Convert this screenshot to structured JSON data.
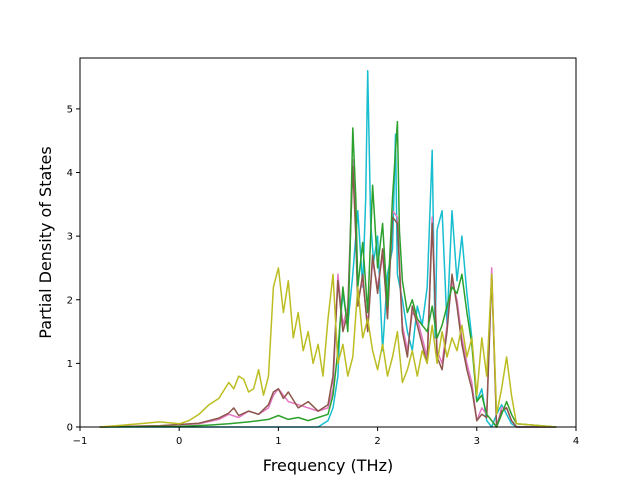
{
  "chart_data": {
    "type": "line",
    "title": "",
    "xlabel": "Frequency (THz)",
    "ylabel": "Partial Density of States",
    "xlim": [
      -1.0,
      4.0
    ],
    "ylim": [
      0,
      5.8
    ],
    "xticks": [
      -1,
      0,
      1,
      2,
      3,
      4
    ],
    "yticks": [
      0,
      1,
      2,
      3,
      4,
      5
    ],
    "grid": false,
    "legend": "none",
    "series": [
      {
        "color": "#17becf",
        "x": [
          -0.8,
          1.4,
          1.5,
          1.55,
          1.6,
          1.62,
          1.65,
          1.7,
          1.75,
          1.8,
          1.85,
          1.88,
          1.9,
          1.93,
          1.96,
          2.0,
          2.05,
          2.1,
          2.15,
          2.18,
          2.2,
          2.25,
          2.3,
          2.35,
          2.4,
          2.45,
          2.5,
          2.55,
          2.58,
          2.6,
          2.65,
          2.7,
          2.75,
          2.8,
          2.85,
          2.9,
          2.95,
          3.0,
          3.05,
          3.1,
          3.15,
          3.2,
          3.25,
          3.3,
          3.35,
          3.4,
          3.8
        ],
        "y": [
          0,
          0,
          0.1,
          0.3,
          0.8,
          1.6,
          2.1,
          1.6,
          2.4,
          3.4,
          2.2,
          3.6,
          5.6,
          3.2,
          2.6,
          3.0,
          1.2,
          2.4,
          2.8,
          4.6,
          2.4,
          2.0,
          1.5,
          1.2,
          1.9,
          1.6,
          2.2,
          4.35,
          1.4,
          3.1,
          3.4,
          1.6,
          3.4,
          2.3,
          3.0,
          2.1,
          1.4,
          0.4,
          0.6,
          0.1,
          0.0,
          0.2,
          0.35,
          0.2,
          0.05,
          0.0,
          0.0
        ]
      },
      {
        "color": "#e377c2",
        "x": [
          -0.8,
          -0.2,
          0.2,
          0.4,
          0.5,
          0.6,
          0.7,
          0.8,
          0.9,
          0.95,
          1.0,
          1.1,
          1.2,
          1.3,
          1.4,
          1.5,
          1.55,
          1.6,
          1.65,
          1.7,
          1.75,
          1.78,
          1.8,
          1.85,
          1.9,
          1.95,
          2.0,
          2.05,
          2.1,
          2.15,
          2.2,
          2.25,
          2.3,
          2.35,
          2.4,
          2.45,
          2.5,
          2.55,
          2.6,
          2.65,
          2.7,
          2.75,
          2.8,
          2.85,
          2.9,
          2.95,
          3.0,
          3.05,
          3.1,
          3.15,
          3.2,
          3.25,
          3.3,
          3.35,
          3.4,
          3.8
        ],
        "y": [
          0,
          0.02,
          0.05,
          0.12,
          0.2,
          0.15,
          0.25,
          0.2,
          0.3,
          0.5,
          0.6,
          0.4,
          0.35,
          0.3,
          0.25,
          0.3,
          0.6,
          2.4,
          1.6,
          1.9,
          4.2,
          3.2,
          2.0,
          2.3,
          1.6,
          2.6,
          2.2,
          2.7,
          1.8,
          3.4,
          3.3,
          1.6,
          1.2,
          1.8,
          1.7,
          1.4,
          1.1,
          3.3,
          1.2,
          1.0,
          1.6,
          2.3,
          2.0,
          1.4,
          1.0,
          0.7,
          0.1,
          0.3,
          0.2,
          2.5,
          0.0,
          0.3,
          0.3,
          0.1,
          0.0,
          0.0
        ]
      },
      {
        "color": "#8c564b",
        "x": [
          -0.8,
          -0.2,
          0.2,
          0.4,
          0.5,
          0.55,
          0.6,
          0.7,
          0.8,
          0.9,
          0.95,
          1.0,
          1.05,
          1.1,
          1.2,
          1.3,
          1.4,
          1.5,
          1.55,
          1.6,
          1.65,
          1.7,
          1.75,
          1.78,
          1.8,
          1.85,
          1.9,
          1.95,
          2.0,
          2.05,
          2.1,
          2.15,
          2.2,
          2.25,
          2.3,
          2.35,
          2.4,
          2.45,
          2.5,
          2.55,
          2.6,
          2.65,
          2.7,
          2.75,
          2.8,
          2.85,
          2.9,
          2.95,
          3.0,
          3.05,
          3.1,
          3.15,
          3.2,
          3.25,
          3.3,
          3.35,
          3.4,
          3.8
        ],
        "y": [
          0,
          0.02,
          0.06,
          0.14,
          0.22,
          0.3,
          0.18,
          0.25,
          0.2,
          0.35,
          0.55,
          0.6,
          0.45,
          0.55,
          0.3,
          0.4,
          0.25,
          0.35,
          0.8,
          2.3,
          1.5,
          1.8,
          4.1,
          3.0,
          1.9,
          2.4,
          1.5,
          2.7,
          2.1,
          2.8,
          1.7,
          3.3,
          3.2,
          1.5,
          1.1,
          1.9,
          1.6,
          1.3,
          1.0,
          3.2,
          1.1,
          0.9,
          1.5,
          2.4,
          1.9,
          1.3,
          0.9,
          0.6,
          0.1,
          0.2,
          0.15,
          2.4,
          0.0,
          0.25,
          0.3,
          0.1,
          0.0,
          0.0
        ]
      },
      {
        "color": "#2ca02c",
        "x": [
          -0.8,
          0.0,
          0.3,
          0.5,
          0.7,
          0.9,
          1.0,
          1.1,
          1.2,
          1.3,
          1.4,
          1.5,
          1.55,
          1.6,
          1.65,
          1.7,
          1.72,
          1.75,
          1.78,
          1.8,
          1.85,
          1.9,
          1.95,
          2.0,
          2.05,
          2.1,
          2.15,
          2.2,
          2.22,
          2.25,
          2.3,
          2.35,
          2.4,
          2.45,
          2.5,
          2.55,
          2.6,
          2.65,
          2.7,
          2.75,
          2.8,
          2.85,
          2.9,
          2.95,
          3.0,
          3.05,
          3.1,
          3.15,
          3.2,
          3.25,
          3.3,
          3.35,
          3.4,
          3.8
        ],
        "y": [
          0,
          0.01,
          0.03,
          0.05,
          0.08,
          0.12,
          0.18,
          0.12,
          0.15,
          0.1,
          0.15,
          0.2,
          0.5,
          1.2,
          2.2,
          1.5,
          2.6,
          4.7,
          3.6,
          2.2,
          2.9,
          1.8,
          3.8,
          2.5,
          3.2,
          1.9,
          3.6,
          4.8,
          3.1,
          2.3,
          1.8,
          2.0,
          1.7,
          1.6,
          1.5,
          1.9,
          1.4,
          1.6,
          1.9,
          2.2,
          2.1,
          2.4,
          1.8,
          1.3,
          0.4,
          0.5,
          0.2,
          0.1,
          0.0,
          0.2,
          0.4,
          0.2,
          0.05,
          0.0
        ]
      },
      {
        "color": "#bcbd22",
        "x": [
          -0.8,
          -0.4,
          -0.2,
          0.0,
          0.1,
          0.2,
          0.3,
          0.4,
          0.5,
          0.55,
          0.6,
          0.65,
          0.7,
          0.75,
          0.8,
          0.85,
          0.9,
          0.95,
          1.0,
          1.05,
          1.1,
          1.15,
          1.2,
          1.25,
          1.3,
          1.35,
          1.4,
          1.45,
          1.5,
          1.55,
          1.6,
          1.65,
          1.7,
          1.75,
          1.8,
          1.85,
          1.9,
          1.95,
          2.0,
          2.05,
          2.1,
          2.15,
          2.2,
          2.25,
          2.3,
          2.35,
          2.4,
          2.45,
          2.5,
          2.55,
          2.6,
          2.65,
          2.7,
          2.75,
          2.8,
          2.85,
          2.9,
          2.95,
          3.0,
          3.05,
          3.1,
          3.15,
          3.2,
          3.25,
          3.3,
          3.35,
          3.4,
          3.8
        ],
        "y": [
          0,
          0.05,
          0.08,
          0.05,
          0.1,
          0.2,
          0.35,
          0.45,
          0.7,
          0.6,
          0.8,
          0.75,
          0.55,
          0.6,
          0.9,
          0.5,
          0.8,
          2.2,
          2.5,
          1.8,
          2.3,
          1.4,
          1.8,
          1.2,
          1.5,
          1.0,
          1.3,
          0.8,
          1.7,
          2.4,
          1.0,
          1.3,
          0.8,
          1.1,
          2.2,
          1.4,
          1.7,
          1.2,
          0.9,
          1.3,
          0.8,
          1.1,
          1.5,
          0.7,
          0.9,
          1.2,
          0.8,
          1.2,
          1.0,
          1.6,
          1.0,
          1.5,
          1.1,
          1.4,
          1.2,
          1.6,
          1.1,
          1.4,
          0.5,
          1.4,
          0.8,
          2.4,
          0.2,
          0.6,
          1.1,
          0.5,
          0.05,
          0.0
        ]
      }
    ]
  }
}
